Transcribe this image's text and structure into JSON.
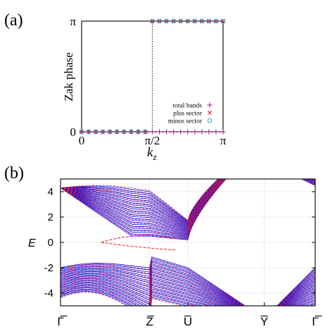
{
  "panel_labels": {
    "a": "(a)",
    "b": "(b)"
  },
  "colors": {
    "total": "#a0208f",
    "plus": "#d61f3c",
    "minus": "#2aa3c2",
    "blue_band": "#1515ee",
    "red_band": "#ee1a1a",
    "axis": "#000000",
    "grid": "#b8b8b8"
  },
  "chart_data": [
    {
      "panel": "(a)",
      "type": "scatter",
      "xlabel": "k_z",
      "ylabel": "Zak phase",
      "xlim": [
        0,
        1
      ],
      "ylim": [
        0,
        1
      ],
      "x_unit": "π",
      "y_unit": "π",
      "xticks": [
        {
          "value": 0,
          "label": "0"
        },
        {
          "value": 0.5,
          "label": "π/2"
        },
        {
          "value": 1,
          "label": "π"
        }
      ],
      "yticks": [
        {
          "value": 0,
          "label": "0"
        },
        {
          "value": 1,
          "label": "π"
        }
      ],
      "transition": 0.5,
      "legend_position": "bottom-right",
      "series": [
        {
          "name": "total bands",
          "marker": "+",
          "x": [
            0,
            0.05,
            0.1,
            0.15,
            0.2,
            0.25,
            0.3,
            0.35,
            0.4,
            0.45,
            0.5,
            0.55,
            0.6,
            0.65,
            0.7,
            0.75,
            0.8,
            0.85,
            0.9,
            0.95,
            1
          ],
          "y": [
            0,
            0,
            0,
            0,
            0,
            0,
            0,
            0,
            0,
            0,
            0,
            0,
            0,
            0,
            0,
            0,
            0,
            0,
            0,
            0,
            0
          ]
        },
        {
          "name": "plus sector",
          "marker": "x",
          "x": [
            0,
            0.05,
            0.1,
            0.15,
            0.2,
            0.25,
            0.3,
            0.35,
            0.4,
            0.45,
            0.5,
            0.55,
            0.6,
            0.65,
            0.7,
            0.75,
            0.8,
            0.85,
            0.9,
            0.95,
            1
          ],
          "y": [
            0,
            0,
            0,
            0,
            0,
            0,
            0,
            0,
            0,
            0,
            1,
            1,
            1,
            1,
            1,
            1,
            1,
            1,
            1,
            1,
            1
          ]
        },
        {
          "name": "minus sector",
          "marker": "o",
          "x": [
            0,
            0.05,
            0.1,
            0.15,
            0.2,
            0.25,
            0.3,
            0.35,
            0.4,
            0.45,
            0.5,
            0.55,
            0.6,
            0.65,
            0.7,
            0.75,
            0.8,
            0.85,
            0.9,
            0.95,
            1
          ],
          "y": [
            0,
            0,
            0,
            0,
            0,
            0,
            0,
            0,
            0,
            0,
            1,
            1,
            1,
            1,
            1,
            1,
            1,
            1,
            1,
            1,
            1
          ]
        }
      ]
    },
    {
      "panel": "(b)",
      "type": "line",
      "ylabel": "E",
      "ylim": [
        -5,
        5
      ],
      "yticks": [
        -4,
        -2,
        0,
        2,
        4
      ],
      "ytick_labels": [
        "-4",
        "-2",
        "0",
        "2",
        "4"
      ],
      "k_points": [
        "Γ̅",
        "Z̅",
        "U̅",
        "Y̅",
        "Γ̅"
      ],
      "k_positions": [
        0,
        0.35,
        0.5,
        0.8,
        1
      ],
      "grid": true,
      "series": [
        {
          "name": "",
          "color": "blue",
          "style": "solid",
          "description_values": "dense surface/bulk bands"
        },
        {
          "name": "",
          "color": "red",
          "style": "dashed",
          "description_values": "dense bands"
        }
      ]
    }
  ]
}
